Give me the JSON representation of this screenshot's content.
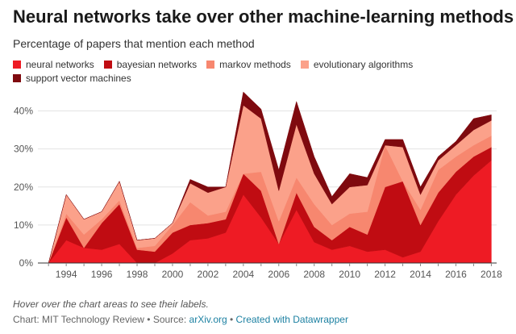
{
  "title": "Neural networks take over other machine-learning methods",
  "subtitle": "Percentage of papers that mention each method",
  "note": "Hover over the chart areas to see their labels.",
  "credit": {
    "prefix": "Chart: MIT Technology Review • Source: ",
    "source_link": "arXiv.org",
    "separator": " • ",
    "created_link": "Created with Datawrapper"
  },
  "chart_data": {
    "type": "area",
    "stacked": true,
    "x": [
      1993,
      1994,
      1995,
      1996,
      1997,
      1998,
      1999,
      2000,
      2001,
      2002,
      2003,
      2004,
      2005,
      2006,
      2007,
      2008,
      2009,
      2010,
      2011,
      2012,
      2013,
      2014,
      2015,
      2016,
      2017,
      2018
    ],
    "xticks": [
      1994,
      1996,
      1998,
      2000,
      2002,
      2004,
      2006,
      2008,
      2010,
      2012,
      2014,
      2016,
      2018
    ],
    "yticks": [
      0,
      10,
      20,
      30,
      40
    ],
    "ytick_labels": [
      "0%",
      "10%",
      "20%",
      "30%",
      "40%"
    ],
    "ylim": [
      0,
      45
    ],
    "xlim": [
      1992.4,
      2018.3
    ],
    "grid": "horizontal",
    "legend_position": "top-left",
    "series": [
      {
        "name": "neural networks",
        "color": "#ee1b24",
        "values": [
          0,
          6,
          4,
          3.5,
          5,
          0,
          0,
          2.5,
          6,
          6.5,
          8,
          18,
          12,
          5,
          14,
          5.5,
          3.5,
          4.5,
          3,
          3.5,
          1.5,
          3,
          11,
          18,
          23,
          27
        ]
      },
      {
        "name": "bayesian networks",
        "color": "#c00c12",
        "values": [
          0,
          6,
          0,
          7,
          10.5,
          3.5,
          3,
          5.5,
          4,
          4,
          3.5,
          5.5,
          7,
          0,
          4.5,
          4,
          2.5,
          5,
          4.5,
          16.5,
          20,
          7,
          7.5,
          6,
          5,
          3.5
        ]
      },
      {
        "name": "markov methods",
        "color": "#f7876f",
        "values": [
          0,
          1,
          3.5,
          1,
          1,
          0.5,
          1.5,
          2,
          6,
          2,
          2,
          0,
          5,
          6,
          4,
          6,
          4,
          3.5,
          6,
          11,
          0,
          4,
          6,
          4,
          3,
          3
        ]
      },
      {
        "name": "evolutionary algorithms",
        "color": "#fba18a",
        "values": [
          0,
          5,
          4,
          2,
          5,
          2,
          2,
          0.5,
          5,
          6,
          6.5,
          18,
          14,
          8,
          14,
          8,
          5.5,
          7,
          7,
          0,
          9,
          4,
          2.5,
          3,
          4,
          4
        ]
      },
      {
        "name": "support vector machines",
        "color": "#7f0a0f",
        "values": [
          0,
          0,
          0,
          0,
          0,
          0,
          0,
          0,
          1,
          1.5,
          0,
          3.5,
          2.5,
          5.5,
          6,
          4.5,
          2,
          3.5,
          2,
          1.5,
          2,
          2,
          1,
          1,
          3,
          1.5
        ]
      }
    ]
  }
}
